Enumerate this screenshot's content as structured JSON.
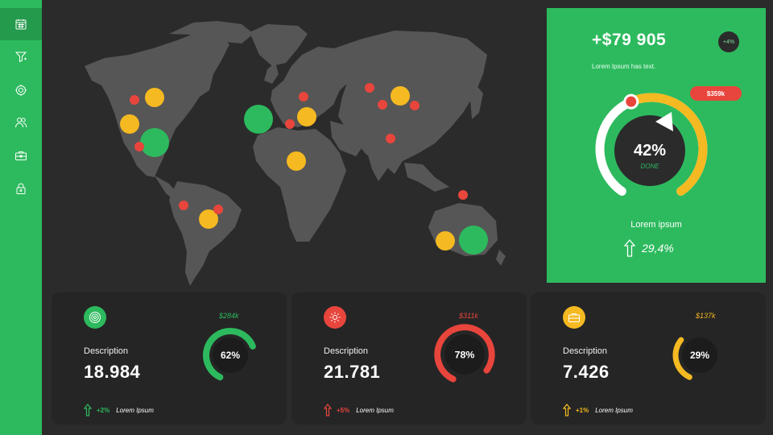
{
  "sidebar": {
    "items": [
      {
        "icon": "calendar-icon",
        "active": true
      },
      {
        "icon": "funnel-icon",
        "active": false
      },
      {
        "icon": "badge-icon",
        "active": false
      },
      {
        "icon": "users-icon",
        "active": false
      },
      {
        "icon": "briefcase-icon",
        "active": false
      },
      {
        "icon": "lock-icon",
        "active": false
      }
    ]
  },
  "hero": {
    "value": "+$79 905",
    "subtitle": "Lorem Ipsum has text.",
    "badge": "+4%",
    "gauge_percent": "42%",
    "gauge_status": "DONE",
    "gauge_fraction": 0.42,
    "pill": "$359k",
    "label": "Lorem ipsum",
    "trend_value": "29,4%"
  },
  "cards": [
    {
      "icon": "target-icon",
      "color": "#2dba5e",
      "description": "Description",
      "value": "18.984",
      "percent": "62%",
      "fraction": 0.62,
      "amount": "$284k",
      "change": "+2%",
      "change_label": "Lorem Ipsum"
    },
    {
      "icon": "gear-icon",
      "color": "#e8453c",
      "description": "Description",
      "value": "21.781",
      "percent": "78%",
      "fraction": 0.78,
      "amount": "$311k",
      "change": "+5%",
      "change_label": "Lorem Ipsum"
    },
    {
      "icon": "briefcase-icon",
      "color": "#f5b921",
      "description": "Description",
      "value": "7.426",
      "percent": "29%",
      "fraction": 0.29,
      "amount": "$137k",
      "change": "+1%",
      "change_label": "Lorem Ipsum"
    }
  ],
  "colors": {
    "green": "#2dba5e",
    "red": "#e8453c",
    "yellow": "#f5b921",
    "dark": "#2b2b2b",
    "map": "#565656"
  }
}
